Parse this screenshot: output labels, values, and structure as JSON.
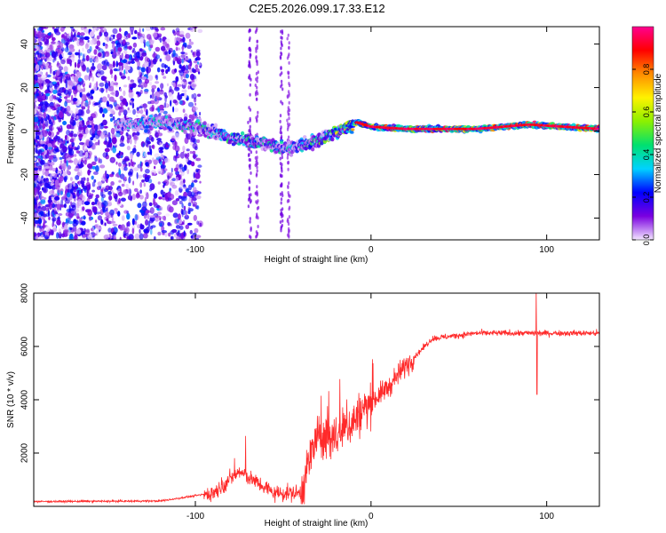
{
  "title": "C2E5.2026.099.17.33.E12",
  "chart_data": [
    {
      "type": "heatmap",
      "panel": "top",
      "xlabel": "Height of straight line (km)",
      "ylabel": "Frequency (Hz)",
      "xlim": [
        -192,
        130
      ],
      "ylim": [
        -50,
        48
      ],
      "xticks": [
        -100,
        0,
        100
      ],
      "yticks": [
        -40,
        -20,
        0,
        20,
        40
      ],
      "colorbar": {
        "label": "Normalized spectral amplitude",
        "ticks": [
          0.0,
          0.2,
          0.4,
          0.6,
          0.8
        ],
        "range": [
          0,
          1
        ],
        "colors": [
          "#f3e6ff",
          "#7a00e0",
          "#0000ff",
          "#00d2ff",
          "#00e070",
          "#8cf000",
          "#fff200",
          "#ff8c00",
          "#ff0000",
          "#ff0090"
        ]
      },
      "ridge": [
        {
          "x": -140,
          "f": 3,
          "a": 0.35
        },
        {
          "x": -120,
          "f": 4,
          "a": 0.4
        },
        {
          "x": -100,
          "f": 2,
          "a": 0.45
        },
        {
          "x": -80,
          "f": -3,
          "a": 0.5
        },
        {
          "x": -60,
          "f": -6,
          "a": 0.45
        },
        {
          "x": -45,
          "f": -8,
          "a": 0.4
        },
        {
          "x": -30,
          "f": -4,
          "a": 0.5
        },
        {
          "x": -15,
          "f": 1,
          "a": 0.7
        },
        {
          "x": -8,
          "f": 4,
          "a": 0.8
        },
        {
          "x": 0,
          "f": 2,
          "a": 0.85
        },
        {
          "x": 20,
          "f": 1,
          "a": 0.9
        },
        {
          "x": 60,
          "f": 1,
          "a": 0.95
        },
        {
          "x": 90,
          "f": 3,
          "a": 0.9
        },
        {
          "x": 130,
          "f": 1,
          "a": 0.95
        }
      ]
    },
    {
      "type": "line",
      "panel": "bottom",
      "xlabel": "Height of straight line (km)",
      "ylabel": "SNR (10 * v/v)",
      "xlim": [
        -192,
        130
      ],
      "ylim": [
        0,
        8000
      ],
      "xticks": [
        -100,
        0,
        100
      ],
      "yticks": [
        2000,
        4000,
        6000,
        8000
      ],
      "series": [
        {
          "name": "SNR",
          "color": "#ff2a2a",
          "trend": [
            {
              "x": -192,
              "y": 180
            },
            {
              "x": -120,
              "y": 200
            },
            {
              "x": -90,
              "y": 500
            },
            {
              "x": -75,
              "y": 1300
            },
            {
              "x": -65,
              "y": 900
            },
            {
              "x": -55,
              "y": 500
            },
            {
              "x": -40,
              "y": 500
            },
            {
              "x": -32,
              "y": 2500
            },
            {
              "x": -20,
              "y": 2600
            },
            {
              "x": -10,
              "y": 3200
            },
            {
              "x": 0,
              "y": 3900
            },
            {
              "x": 10,
              "y": 4500
            },
            {
              "x": 20,
              "y": 5300
            },
            {
              "x": 35,
              "y": 6300
            },
            {
              "x": 60,
              "y": 6500
            },
            {
              "x": 90,
              "y": 6500
            },
            {
              "x": 130,
              "y": 6500
            }
          ],
          "spikes": [
            {
              "x": 94,
              "y": 8100
            },
            {
              "x": 94.5,
              "y": 4200
            }
          ]
        }
      ]
    }
  ]
}
